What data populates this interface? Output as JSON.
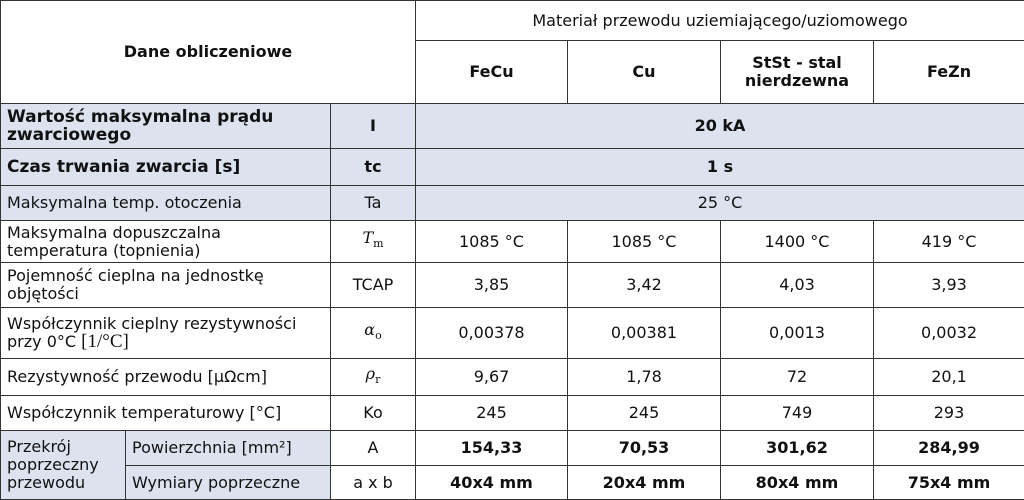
{
  "header": {
    "title": "Dane obliczeniowe",
    "material_header": "Materiał przewodu uziemiającego/uziomowego",
    "materials": [
      "FeCu",
      "Cu",
      "StSt - stal nierdzewna",
      "FeZn"
    ]
  },
  "rows": [
    {
      "label": "Wartość maksymalna prądu zwarciowego",
      "symbol": "I",
      "value": "20 kA"
    },
    {
      "label": "Czas trwania zwarcia [s]",
      "symbol": "tc",
      "value": "1 s"
    },
    {
      "label": "Maksymalna temp. otoczenia",
      "symbol": "Ta",
      "value": "25 °C"
    },
    {
      "label": "Maksymalna dopuszczalna temperatura (topnienia)",
      "symbol": "T",
      "symbol_sub": "m",
      "values": [
        "1085 °C",
        "1085 °C",
        "1400 °C",
        "419 °C"
      ]
    },
    {
      "label": "Pojemność cieplna na jednostkę objętości",
      "symbol": "TCAP",
      "values": [
        "3,85",
        "3,42",
        "4,03",
        "3,93"
      ]
    },
    {
      "label": "Współczynnik cieplny rezystywności przy 0°C",
      "unit": "[1/°C]",
      "symbol": "α",
      "symbol_sub": "o",
      "values": [
        "0,00378",
        "0,00381",
        "0,0013",
        "0,0032"
      ]
    },
    {
      "label": "Rezystywność przewodu [μΩcm]",
      "symbol": "ρ",
      "symbol_sub": "r",
      "values": [
        "9,67",
        "1,78",
        "72",
        "20,1"
      ]
    },
    {
      "label": "Współczynnik temperaturowy [°C]",
      "symbol": "Ko",
      "values": [
        "245",
        "245",
        "749",
        "293"
      ]
    }
  ],
  "cross_section": {
    "label": "Przekrój poprzeczny przewodu",
    "rows": [
      {
        "label": "Powierzchnia [mm²]",
        "symbol": "A",
        "values": [
          "154,33",
          "70,53",
          "301,62",
          "284,99"
        ]
      },
      {
        "label": "Wymiary poprzeczne",
        "symbol": "a x b",
        "values": [
          "40x4 mm",
          "20x4 mm",
          "80x4 mm",
          "75x4 mm"
        ]
      }
    ]
  }
}
